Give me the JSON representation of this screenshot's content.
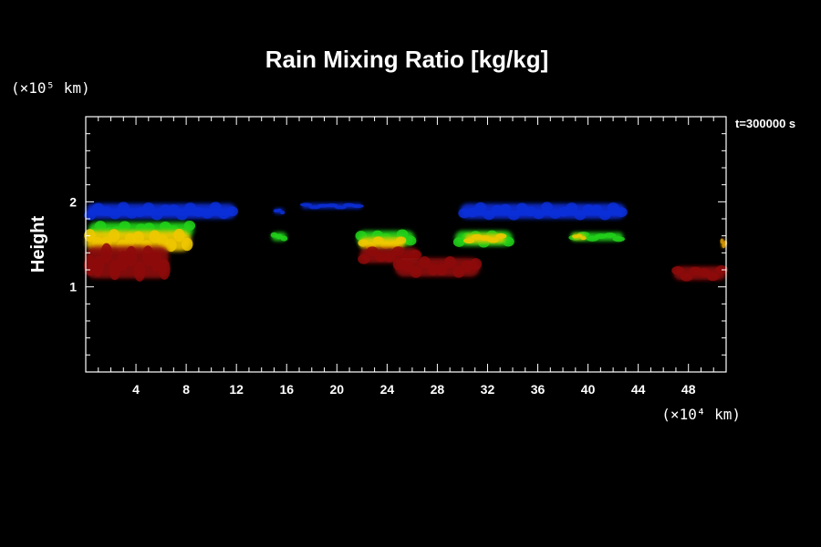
{
  "chart_data": {
    "type": "heatmap",
    "title": "Rain Mixing Ratio [kg/kg]",
    "ylabel": "Height",
    "x_unit": "(×10⁴ km)",
    "y_unit": "(×10⁵ km)",
    "time_label": "t=300000 s",
    "xlim": [
      0,
      51
    ],
    "ylim": [
      0,
      3
    ],
    "x_ticks": [
      4,
      8,
      12,
      16,
      20,
      24,
      28,
      32,
      36,
      40,
      44,
      48
    ],
    "y_ticks": [
      1,
      2
    ],
    "colors": {
      "blue": "#0a2fd8",
      "green": "#22d21a",
      "yellow": "#f0c800",
      "orange": "#d89a00",
      "red": "#8e0a0a"
    },
    "cells": [
      {
        "color": "blue",
        "x": [
          0.0,
          12.0
        ],
        "y": [
          1.8,
          1.98
        ],
        "y2": [
          1.84,
          1.92
        ]
      },
      {
        "color": "blue",
        "x": [
          15.0,
          15.8
        ],
        "y": [
          1.86,
          1.92
        ]
      },
      {
        "color": "blue",
        "x": [
          17.2,
          22.0
        ],
        "y": [
          1.92,
          1.98
        ]
      },
      {
        "color": "blue",
        "x": [
          29.8,
          43.0
        ],
        "y": [
          1.8,
          1.98
        ],
        "y2": [
          1.84,
          1.9
        ]
      },
      {
        "color": "green",
        "x": [
          0.2,
          8.6
        ],
        "y": [
          1.58,
          1.76
        ]
      },
      {
        "color": "green",
        "x": [
          14.8,
          16.0
        ],
        "y": [
          1.54,
          1.64
        ]
      },
      {
        "color": "green",
        "x": [
          21.6,
          26.2
        ],
        "y": [
          1.48,
          1.66
        ]
      },
      {
        "color": "green",
        "x": [
          29.4,
          34.0
        ],
        "y": [
          1.48,
          1.66
        ]
      },
      {
        "color": "green",
        "x": [
          38.6,
          42.8
        ],
        "y": [
          1.54,
          1.64
        ]
      },
      {
        "color": "yellow",
        "x": [
          0.0,
          8.4
        ],
        "y": [
          1.42,
          1.66
        ]
      },
      {
        "color": "yellow",
        "x": [
          21.8,
          25.4
        ],
        "y": [
          1.44,
          1.58
        ]
      },
      {
        "color": "yellow",
        "x": [
          30.2,
          33.4
        ],
        "y": [
          1.52,
          1.62
        ]
      },
      {
        "color": "yellow",
        "x": [
          38.8,
          39.8
        ],
        "y": [
          1.56,
          1.62
        ]
      },
      {
        "color": "orange",
        "x": [
          50.6,
          51.0
        ],
        "y": [
          1.46,
          1.56
        ]
      },
      {
        "color": "red",
        "x": [
          0.0,
          6.6
        ],
        "y": [
          1.1,
          1.48
        ]
      },
      {
        "color": "red",
        "x": [
          21.8,
          26.6
        ],
        "y": [
          1.28,
          1.46
        ]
      },
      {
        "color": "red",
        "x": [
          24.6,
          31.4
        ],
        "y": [
          1.12,
          1.34
        ]
      },
      {
        "color": "red",
        "x": [
          46.8,
          51.0
        ],
        "y": [
          1.08,
          1.24
        ]
      }
    ]
  }
}
